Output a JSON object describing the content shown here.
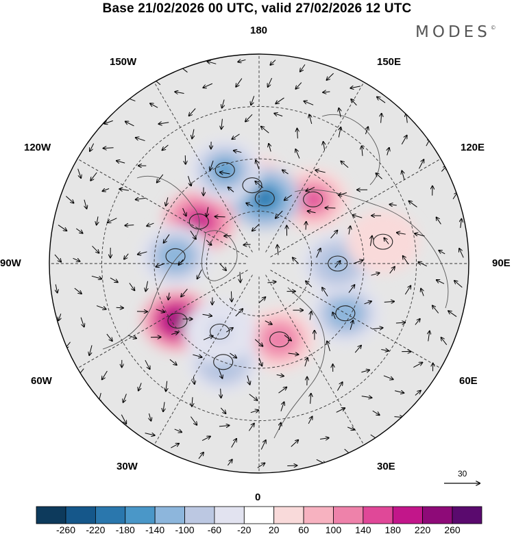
{
  "header": {
    "title": "Base 21/02/2026 00 UTC, valid 27/02/2026 12 UTC",
    "brand": "MODES",
    "brand_mark": "©"
  },
  "map": {
    "projection": "north-polar-stereographic",
    "longitude_labels": {
      "top": "180",
      "top_left": "150W",
      "top_right": "150E",
      "upper_left": "120W",
      "upper_right": "120E",
      "left": "90W",
      "right": "90E",
      "lower_left": "60W",
      "lower_right": "60E",
      "bottom_left": "30W",
      "bottom_right": "30E",
      "bottom": "0"
    },
    "reference_vector": "30",
    "anomaly_cells": [
      {
        "region": "aleutian-high",
        "lon": -175,
        "colat": 30,
        "value": 160
      },
      {
        "region": "hudson-bay-high",
        "lon": -125,
        "colat": 28,
        "value": 200
      },
      {
        "region": "north-atlantic-high",
        "lon": -55,
        "colat": 38,
        "value": 240
      },
      {
        "region": "east-siberia-high",
        "lon": 140,
        "colat": 32,
        "value": 150
      },
      {
        "region": "scandinavia-high",
        "lon": 15,
        "colat": 30,
        "value": 140
      },
      {
        "region": "kamchatka-low",
        "lon": 175,
        "colat": 25,
        "value": -200
      },
      {
        "region": "gulf-alaska-low",
        "lon": -160,
        "colat": 38,
        "value": -140
      },
      {
        "region": "canada-low",
        "lon": -95,
        "colat": 32,
        "value": -120
      },
      {
        "region": "ural-low",
        "lon": 60,
        "colat": 38,
        "value": -120
      },
      {
        "region": "west-siberia-low",
        "lon": 90,
        "colat": 30,
        "value": -100
      },
      {
        "region": "iberia-low",
        "lon": -20,
        "colat": 40,
        "value": -100
      },
      {
        "region": "iceland-low",
        "lon": -30,
        "colat": 30,
        "value": -60
      },
      {
        "region": "central-asia-high",
        "lon": 100,
        "colat": 48,
        "value": 60
      }
    ]
  },
  "colorbar": {
    "levels": [
      "-260",
      "-220",
      "-180",
      "-140",
      "-100",
      "-60",
      "-20",
      "20",
      "60",
      "100",
      "140",
      "180",
      "220",
      "260"
    ],
    "colors": [
      "#0d3a5c",
      "#15578a",
      "#2a77ad",
      "#4a97c8",
      "#8db6dc",
      "#bcc8e2",
      "#e2e3f0",
      "#ffffff",
      "#f9dada",
      "#f7b2c0",
      "#ee82aa",
      "#e04898",
      "#c2168a",
      "#8e0a78",
      "#5a0a6e"
    ]
  }
}
